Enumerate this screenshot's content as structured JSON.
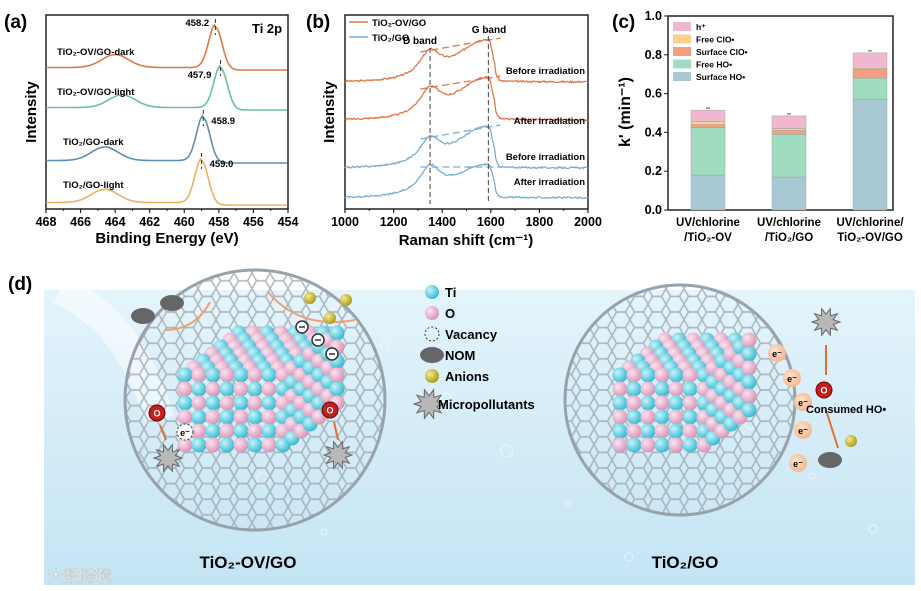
{
  "chart_data": [
    {
      "type": "line",
      "panel_label": "(a)",
      "title": "Ti 2p",
      "xlabel": "Binding Energy (eV)",
      "ylabel": "Intensity",
      "xlim": [
        468,
        454
      ],
      "xticks": [
        "468",
        "466",
        "464",
        "462",
        "460",
        "458",
        "456",
        "454"
      ],
      "series": [
        {
          "name": "TiO2-OV/GO-dark",
          "label": "TiO₂-OV/GO-dark",
          "color": "#e07848",
          "peak": 458.2,
          "peak_label": "458.2",
          "satellite": 464.0
        },
        {
          "name": "TiO2-OV/GO-light",
          "label": "TiO₂-OV/GO-light",
          "color": "#6cc09a",
          "peak": 457.9,
          "peak_label": "457.9",
          "satellite": 463.6
        },
        {
          "name": "TiO2/GO-dark",
          "label": "TiO₂/GO-dark",
          "color": "#5e8fb0",
          "peak": 458.9,
          "peak_label": "458.9",
          "satellite": 464.6
        },
        {
          "name": "TiO2/GO-light",
          "label": "TiO₂/GO-light",
          "color": "#f0b060",
          "peak": 459.0,
          "peak_label": "459.0",
          "satellite": 464.6
        }
      ]
    },
    {
      "type": "line",
      "panel_label": "(b)",
      "xlabel": "Raman shift (cm⁻¹)",
      "ylabel": "Intensity",
      "xlim": [
        1000,
        2000
      ],
      "xticks": [
        "1000",
        "1200",
        "1400",
        "1600",
        "1800",
        "2000"
      ],
      "annotations": [
        "D band",
        "G band"
      ],
      "d_band": 1350,
      "g_band": 1590,
      "legend": [
        {
          "name": "TiO₂-OV/GO",
          "color": "#e07848"
        },
        {
          "name": "TiO₂/GO",
          "color": "#7aaed0"
        }
      ],
      "series": [
        {
          "name": "TiO2-OV/GO",
          "label": "Before irradiation",
          "color": "#e07848"
        },
        {
          "name": "TiO2-OV/GO",
          "label": "After irradiation",
          "color": "#e07848"
        },
        {
          "name": "TiO2/GO",
          "label": "Before irradiation",
          "color": "#7aaed0"
        },
        {
          "name": "TiO2/GO",
          "label": "After irradiation",
          "color": "#7aaed0"
        }
      ]
    },
    {
      "type": "bar",
      "stacked": true,
      "panel_label": "(c)",
      "ylabel": "k' (min⁻¹)",
      "ylim": [
        0,
        1.0
      ],
      "yticks": [
        "0.0",
        "0.2",
        "0.4",
        "0.6",
        "0.8",
        "1.0"
      ],
      "categories": [
        [
          "UV/chlorine",
          "/TiO₂-OV"
        ],
        [
          "UV/chlorine",
          "/TiO₂/GO"
        ],
        [
          "UV/chlorine/",
          "TiO₂-OV/GO"
        ]
      ],
      "legend_position": "top-left",
      "series": [
        {
          "name": "Surface HO•",
          "color": "#a8c8d4",
          "values": [
            0.18,
            0.17,
            0.57
          ]
        },
        {
          "name": "Free HO•",
          "color": "#a0dcc0",
          "values": [
            0.245,
            0.22,
            0.11
          ]
        },
        {
          "name": "Surface ClO•",
          "color": "#f4a080",
          "values": [
            0.015,
            0.02,
            0.045
          ]
        },
        {
          "name": "Free ClO•",
          "color": "#f8d090",
          "values": [
            0.015,
            0.01,
            0.005
          ]
        },
        {
          "name": "h⁺",
          "color": "#f0b8d0",
          "values": [
            0.06,
            0.065,
            0.08
          ]
        }
      ]
    }
  ],
  "diagram": {
    "panel_label": "(d)",
    "legend": [
      "Ti",
      "O",
      "Vacancy",
      "NOM",
      "Anions",
      "Micropollutants"
    ],
    "left_label": "TiO₂-OV/GO",
    "right_label": "TiO₂/GO",
    "electron": "e⁻",
    "consumed": "Consumed HO•",
    "watermark": "大数跨境",
    "colors": {
      "ti": "#56d0e0",
      "o": "#f0a8c8",
      "nom": "#6a6a6a",
      "anion": "#c8b830",
      "water": "#d8eef8"
    }
  }
}
